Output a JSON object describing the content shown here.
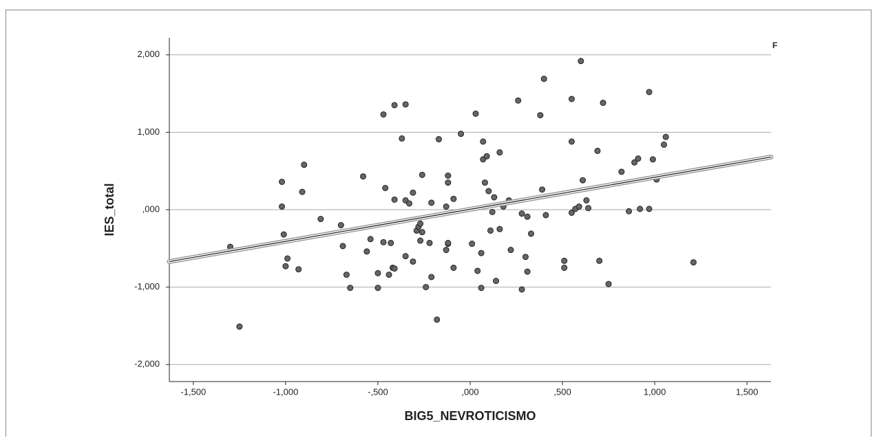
{
  "chart_data": {
    "type": "scatter",
    "x_label": "BIG5_NEVROTICISMO",
    "y_label": "IES_total",
    "annotation": "F",
    "xlim": [
      -1.63,
      1.63
    ],
    "ylim": [
      -2.22,
      2.22
    ],
    "xticks": [
      {
        "value": -1.5,
        "label": "-1,500"
      },
      {
        "value": -1,
        "label": "-1,000"
      },
      {
        "value": -0.5,
        "label": "-,500"
      },
      {
        "value": 0,
        "label": ",000"
      },
      {
        "value": 0.5,
        "label": ",500"
      },
      {
        "value": 1,
        "label": "1,000"
      },
      {
        "value": 1.5,
        "label": "1,500"
      }
    ],
    "yticks": [
      {
        "value": 2,
        "label": "2,000"
      },
      {
        "value": 1,
        "label": "1,000"
      },
      {
        "value": 0,
        "label": ",000"
      },
      {
        "value": -1,
        "label": "-1,000"
      },
      {
        "value": -2,
        "label": "-2,000"
      }
    ],
    "grid": true,
    "color": "#666666",
    "x": [
      -1.3,
      -1.25,
      -1.02,
      -1.02,
      -1.01,
      -1.0,
      -0.99,
      -0.93,
      -0.91,
      -0.9,
      -0.81,
      -0.7,
      -0.69,
      -0.67,
      -0.65,
      -0.58,
      -0.56,
      -0.54,
      -0.5,
      -0.5,
      -0.47,
      -0.47,
      -0.46,
      -0.44,
      -0.43,
      -0.42,
      -0.41,
      -0.41,
      -0.41,
      -0.37,
      -0.35,
      -0.35,
      -0.35,
      -0.33,
      -0.31,
      -0.31,
      -0.29,
      -0.28,
      -0.27,
      -0.27,
      -0.26,
      -0.26,
      -0.24,
      -0.22,
      -0.21,
      -0.21,
      -0.18,
      -0.17,
      -0.13,
      -0.13,
      -0.12,
      -0.12,
      -0.12,
      -0.12,
      -0.09,
      -0.09,
      -0.05,
      0.01,
      0.03,
      0.04,
      0.06,
      0.06,
      0.07,
      0.07,
      0.08,
      0.09,
      0.1,
      0.11,
      0.12,
      0.13,
      0.14,
      0.16,
      0.16,
      0.18,
      0.21,
      0.22,
      0.26,
      0.28,
      0.28,
      0.3,
      0.31,
      0.31,
      0.33,
      0.38,
      0.39,
      0.4,
      0.41,
      0.51,
      0.51,
      0.55,
      0.55,
      0.55,
      0.57,
      0.59,
      0.6,
      0.61,
      0.63,
      0.64,
      0.69,
      0.7,
      0.72,
      0.75,
      0.82,
      0.86,
      0.89,
      0.91,
      0.92,
      0.97,
      0.97,
      0.99,
      1.01,
      1.05,
      1.06,
      1.21
    ],
    "values": [
      -0.48,
      -1.51,
      0.36,
      0.04,
      -0.32,
      -0.73,
      -0.63,
      -0.77,
      0.23,
      0.58,
      -0.12,
      -0.2,
      -0.47,
      -0.84,
      -1.01,
      0.43,
      -0.54,
      -0.38,
      -0.82,
      -1.01,
      1.23,
      -0.42,
      0.28,
      -0.84,
      -0.43,
      -0.75,
      1.35,
      -0.76,
      0.13,
      0.92,
      0.12,
      -0.6,
      1.36,
      0.08,
      0.22,
      -0.67,
      -0.27,
      -0.22,
      -0.4,
      -0.18,
      -0.29,
      0.45,
      -1.0,
      -0.43,
      0.09,
      -0.87,
      -1.42,
      0.91,
      0.04,
      -0.52,
      0.44,
      0.35,
      -0.44,
      -0.43,
      0.14,
      -0.75,
      0.98,
      -0.44,
      1.24,
      -0.79,
      -1.01,
      -0.56,
      0.88,
      0.65,
      0.35,
      0.69,
      0.24,
      -0.27,
      -0.03,
      0.16,
      -0.92,
      -0.25,
      0.74,
      0.04,
      0.12,
      -0.52,
      1.41,
      -0.05,
      -1.03,
      -0.61,
      -0.09,
      -0.8,
      -0.31,
      1.22,
      0.26,
      1.69,
      -0.07,
      -0.66,
      -0.75,
      0.88,
      1.43,
      -0.04,
      0.01,
      0.04,
      1.92,
      0.38,
      0.12,
      0.02,
      0.76,
      -0.66,
      1.38,
      -0.96,
      0.49,
      -0.02,
      0.61,
      0.66,
      0.01,
      1.52,
      0.01,
      0.65,
      0.39,
      0.84,
      0.94,
      -0.68
    ],
    "fit_line": {
      "x": [
        -1.63,
        1.63
      ],
      "y": [
        -0.67,
        0.68
      ]
    }
  }
}
